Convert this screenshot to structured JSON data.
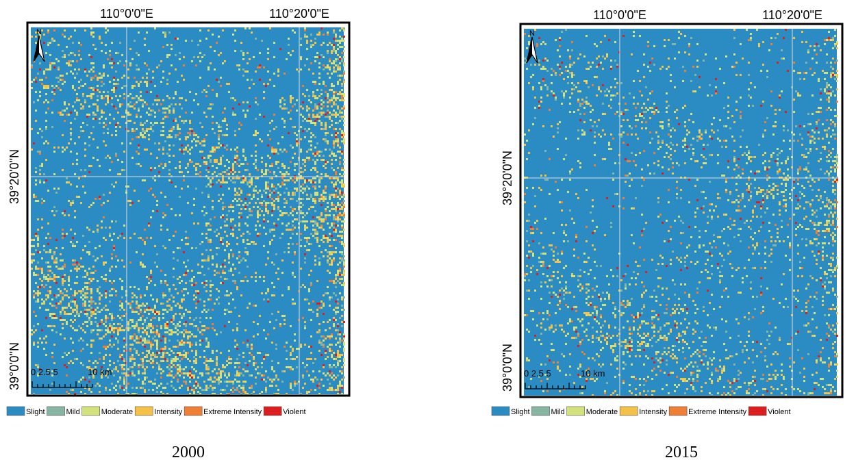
{
  "legend": [
    {
      "label": "Slight",
      "color": "#2b8cc4"
    },
    {
      "label": "Mild",
      "color": "#86b5a2"
    },
    {
      "label": "Moderate",
      "color": "#d3e27c"
    },
    {
      "label": "Intensity",
      "color": "#f4c248"
    },
    {
      "label": "Extreme Intensity",
      "color": "#ef7f34"
    },
    {
      "label": "Violent",
      "color": "#dc1e1e"
    }
  ],
  "panels": [
    {
      "caption": "2000",
      "lon_labels": [
        "110°0'0\"E",
        "110°20'0\"E"
      ],
      "lat_labels": [
        "39°20'0\"N",
        "39°0'0\"N"
      ],
      "north": "N",
      "scale_ticks": "0 2.5 5",
      "scale_unit": "10 km"
    },
    {
      "caption": "2015",
      "lon_labels": [
        "110°0'0\"E",
        "110°20'0\"E"
      ],
      "lat_labels": [
        "39°20'0\"N",
        "39°0'0\"N"
      ],
      "north": "N",
      "scale_ticks": "0 2.5 5",
      "scale_unit": "10 km"
    }
  ]
}
